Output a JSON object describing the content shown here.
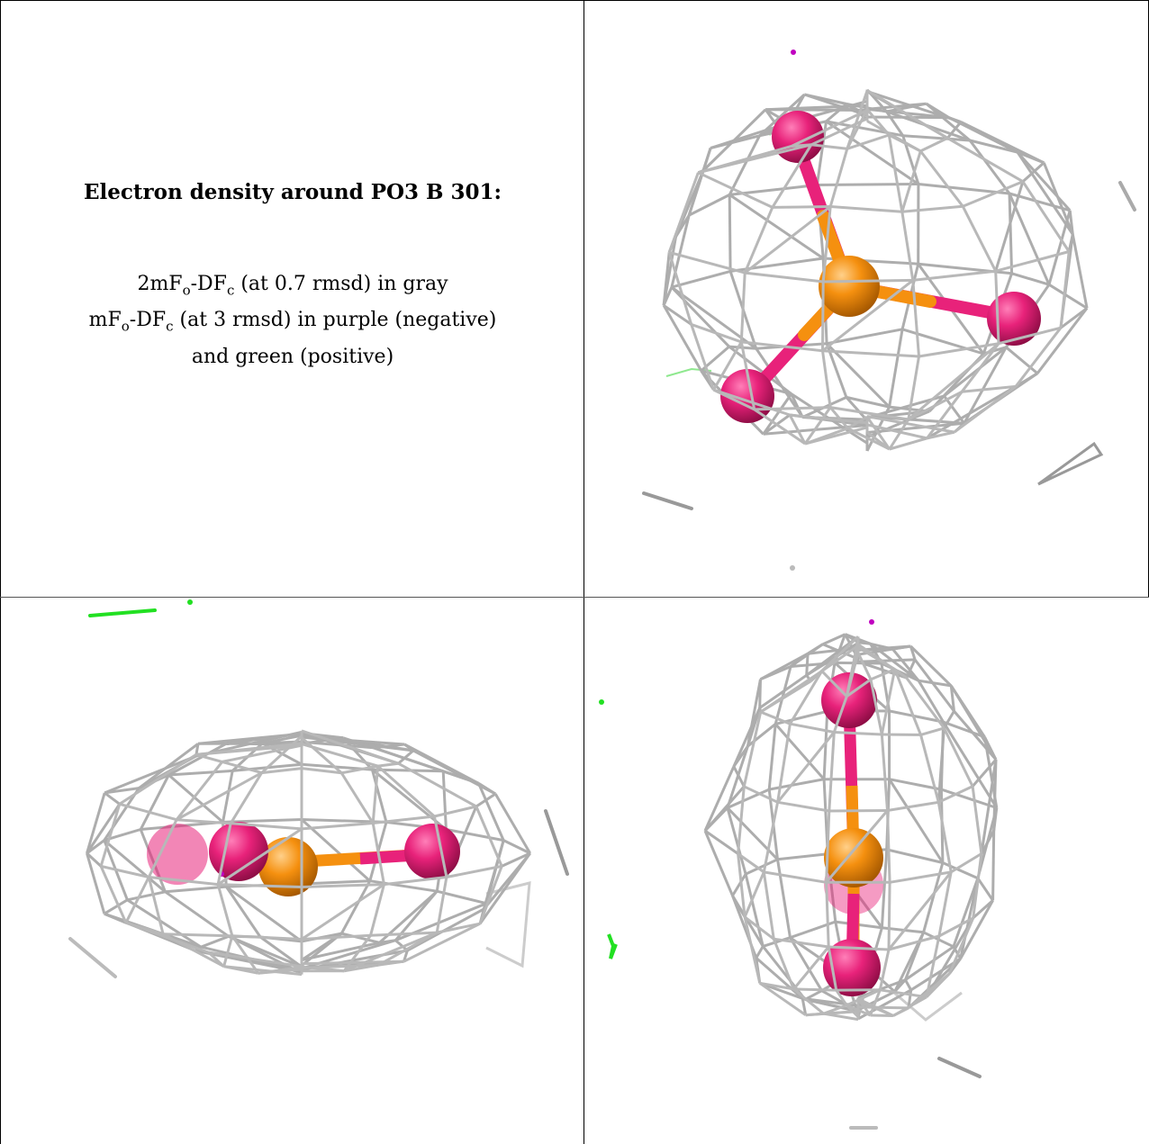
{
  "title": "Electron density around PO3 B 301:",
  "legend": {
    "line1": {
      "m": "2mF",
      "s1": "o",
      "mid": "-DF",
      "s2": "c",
      "rest": " (at 0.7 rmsd) in gray"
    },
    "line2": {
      "m": "mF",
      "s1": "o",
      "mid": "-DF",
      "s2": "c",
      "rest": " (at 3 rmsd) in purple (negative)"
    },
    "line3": "and green (positive)"
  },
  "colors": {
    "mesh": "#a9a9a9",
    "oxygen": "#e8227a",
    "phosphorus": "#f5900f",
    "negative": "#c000c0",
    "positive": "#22e022"
  },
  "views": [
    {
      "name": "view-top",
      "atoms": [
        "O",
        "P",
        "O",
        "O"
      ]
    },
    {
      "name": "view-side",
      "atoms": [
        "O",
        "O",
        "P",
        "O"
      ]
    },
    {
      "name": "view-end",
      "atoms": [
        "O",
        "P",
        "O",
        "O"
      ]
    }
  ]
}
